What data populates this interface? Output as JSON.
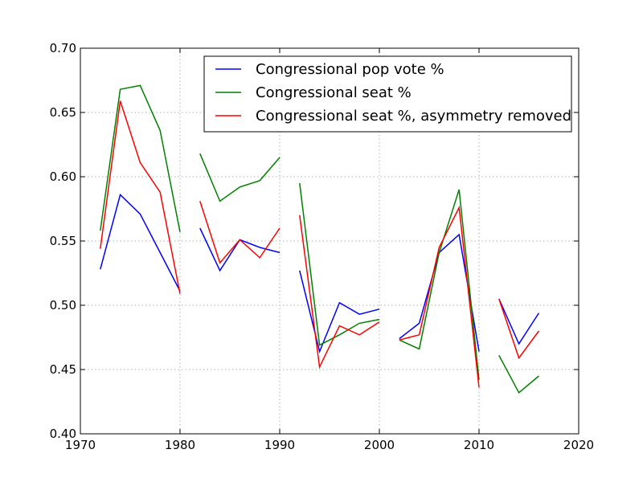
{
  "chart_data": {
    "type": "line",
    "title": "",
    "xlabel": "",
    "ylabel": "",
    "xlim": [
      1970,
      2020
    ],
    "ylim": [
      0.4,
      0.7
    ],
    "xticks": [
      1970,
      1980,
      1990,
      2000,
      2010,
      2020
    ],
    "xtick_labels": [
      "1970",
      "1980",
      "1990",
      "2000",
      "2010",
      "2020"
    ],
    "yticks": [
      0.4,
      0.45,
      0.5,
      0.55,
      0.6,
      0.65,
      0.7
    ],
    "ytick_labels": [
      "0.40",
      "0.45",
      "0.50",
      "0.55",
      "0.60",
      "0.65",
      "0.70"
    ],
    "grid": true,
    "legend_position": "upper-right",
    "series": [
      {
        "name": "Congressional pop vote %",
        "color": "#0000ff",
        "segments": [
          [
            [
              1972,
              0.528
            ],
            [
              1974,
              0.586
            ],
            [
              1976,
              0.571
            ],
            [
              1978,
              0.541
            ],
            [
              1980,
              0.511
            ]
          ],
          [
            [
              1982,
              0.56
            ],
            [
              1984,
              0.527
            ],
            [
              1986,
              0.551
            ],
            [
              1988,
              0.545
            ],
            [
              1990,
              0.541
            ]
          ],
          [
            [
              1992,
              0.527
            ],
            [
              1994,
              0.464
            ],
            [
              1996,
              0.502
            ],
            [
              1998,
              0.493
            ],
            [
              2000,
              0.497
            ]
          ],
          [
            [
              2002,
              0.474
            ],
            [
              2004,
              0.486
            ],
            [
              2006,
              0.541
            ],
            [
              2008,
              0.555
            ],
            [
              2010,
              0.464
            ]
          ],
          [
            [
              2012,
              0.505
            ],
            [
              2014,
              0.47
            ],
            [
              2016,
              0.494
            ]
          ]
        ]
      },
      {
        "name": "Congressional seat %",
        "color": "#008000",
        "segments": [
          [
            [
              1972,
              0.558
            ],
            [
              1974,
              0.668
            ],
            [
              1976,
              0.671
            ],
            [
              1978,
              0.636
            ],
            [
              1980,
              0.557
            ]
          ],
          [
            [
              1982,
              0.618
            ],
            [
              1984,
              0.581
            ],
            [
              1986,
              0.592
            ],
            [
              1988,
              0.597
            ],
            [
              1990,
              0.615
            ]
          ],
          [
            [
              1992,
              0.595
            ],
            [
              1994,
              0.469
            ],
            [
              1996,
              0.477
            ],
            [
              1998,
              0.486
            ],
            [
              2000,
              0.489
            ]
          ],
          [
            [
              2002,
              0.473
            ],
            [
              2004,
              0.466
            ],
            [
              2006,
              0.541
            ],
            [
              2008,
              0.59
            ],
            [
              2010,
              0.442
            ]
          ],
          [
            [
              2012,
              0.461
            ],
            [
              2014,
              0.432
            ],
            [
              2016,
              0.445
            ]
          ]
        ]
      },
      {
        "name": "Congressional seat %, asymmetry removed",
        "color": "#ff0000",
        "segments": [
          [
            [
              1972,
              0.544
            ],
            [
              1974,
              0.659
            ],
            [
              1976,
              0.611
            ],
            [
              1978,
              0.588
            ],
            [
              1980,
              0.509
            ]
          ],
          [
            [
              1982,
              0.581
            ],
            [
              1984,
              0.533
            ],
            [
              1986,
              0.551
            ],
            [
              1988,
              0.537
            ],
            [
              1990,
              0.56
            ]
          ],
          [
            [
              1992,
              0.57
            ],
            [
              1994,
              0.452
            ],
            [
              1996,
              0.484
            ],
            [
              1998,
              0.477
            ],
            [
              2000,
              0.487
            ]
          ],
          [
            [
              2002,
              0.473
            ],
            [
              2004,
              0.477
            ],
            [
              2006,
              0.545
            ],
            [
              2008,
              0.576
            ],
            [
              2010,
              0.436
            ]
          ],
          [
            [
              2012,
              0.505
            ],
            [
              2014,
              0.459
            ],
            [
              2016,
              0.48
            ]
          ]
        ]
      }
    ]
  }
}
